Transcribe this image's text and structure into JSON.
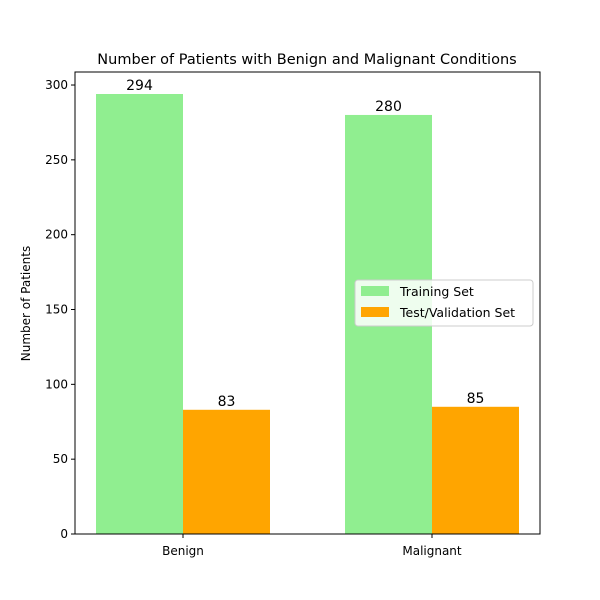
{
  "chart_data": {
    "type": "bar",
    "title": "Number of Patients with Benign and Malignant Conditions",
    "xlabel": "",
    "ylabel": "Number of Patients",
    "categories": [
      "Benign",
      "Malignant"
    ],
    "series": [
      {
        "name": "Training Set",
        "values": [
          294,
          280
        ],
        "color": "#90EE90"
      },
      {
        "name": "Test/Validation Set",
        "values": [
          83,
          85
        ],
        "color": "#FFA500"
      }
    ],
    "ylim": [
      0,
      308.7
    ],
    "yticks": [
      0,
      50,
      100,
      150,
      200,
      250,
      300
    ],
    "grid": false,
    "legend_position": "center-right"
  }
}
